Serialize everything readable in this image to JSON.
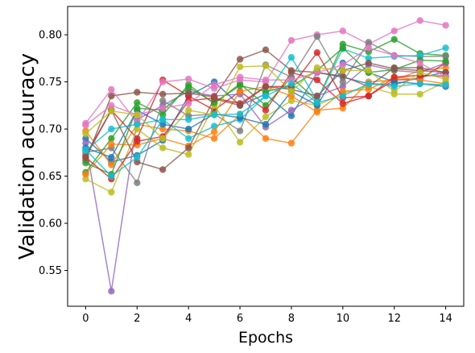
{
  "chart_data": {
    "type": "line",
    "xlabel": "Epochs",
    "ylabel": "Validation acuuracy",
    "xlim": [
      -0.7,
      14.7
    ],
    "ylim": [
      0.512,
      0.83
    ],
    "xticks": [
      0,
      2,
      4,
      6,
      8,
      10,
      12,
      14
    ],
    "yticks": [
      0.55,
      0.6,
      0.65,
      0.7,
      0.75,
      0.8
    ],
    "xtick_labels": [
      "0",
      "2",
      "4",
      "6",
      "8",
      "10",
      "12",
      "14"
    ],
    "ytick_labels": [
      "0.55",
      "0.60",
      "0.65",
      "0.70",
      "0.75",
      "0.80"
    ],
    "grid": false,
    "x": [
      0,
      1,
      2,
      3,
      4,
      5,
      6,
      7,
      8,
      9,
      10,
      11,
      12,
      13,
      14
    ],
    "series": [
      {
        "color": "#1f77b4",
        "values": [
          0.69,
          0.665,
          0.672,
          0.688,
          0.735,
          0.75,
          0.725,
          0.737,
          0.714,
          0.76,
          0.755,
          0.748,
          0.747,
          0.755,
          0.76
        ]
      },
      {
        "color": "#ff7f0e",
        "values": [
          0.698,
          0.662,
          0.705,
          0.7,
          0.698,
          0.69,
          0.715,
          0.69,
          0.685,
          0.72,
          0.722,
          0.75,
          0.752,
          0.762,
          0.765
        ]
      },
      {
        "color": "#2ca02c",
        "values": [
          0.654,
          0.69,
          0.728,
          0.715,
          0.747,
          0.727,
          0.748,
          0.725,
          0.755,
          0.73,
          0.79,
          0.782,
          0.795,
          0.78,
          0.778
        ]
      },
      {
        "color": "#d62728",
        "values": [
          0.672,
          0.72,
          0.69,
          0.752,
          0.735,
          0.72,
          0.74,
          0.72,
          0.76,
          0.752,
          0.727,
          0.735,
          0.752,
          0.753,
          0.77
        ]
      },
      {
        "color": "#9467bd",
        "values": [
          0.685,
          0.528,
          0.71,
          0.725,
          0.74,
          0.735,
          0.737,
          0.702,
          0.72,
          0.735,
          0.745,
          0.768,
          0.762,
          0.76,
          0.77
        ]
      },
      {
        "color": "#8c564b",
        "values": [
          0.667,
          0.735,
          0.739,
          0.737,
          0.738,
          0.734,
          0.774,
          0.784,
          0.762,
          0.76,
          0.756,
          0.745,
          0.765,
          0.765,
          0.76
        ]
      },
      {
        "color": "#e377c2",
        "values": [
          0.706,
          0.742,
          0.707,
          0.75,
          0.753,
          0.743,
          0.752,
          0.75,
          0.794,
          0.8,
          0.804,
          0.79,
          0.804,
          0.815,
          0.81
        ]
      },
      {
        "color": "#7f7f7f",
        "values": [
          0.675,
          0.68,
          0.643,
          0.73,
          0.714,
          0.716,
          0.698,
          0.768,
          0.755,
          0.798,
          0.75,
          0.792,
          0.778,
          0.777,
          0.777
        ]
      },
      {
        "color": "#bcbd22",
        "values": [
          0.647,
          0.633,
          0.7,
          0.68,
          0.673,
          0.725,
          0.686,
          0.713,
          0.73,
          0.725,
          0.738,
          0.745,
          0.737,
          0.737,
          0.75
        ]
      },
      {
        "color": "#17becf",
        "values": [
          0.677,
          0.7,
          0.705,
          0.71,
          0.69,
          0.703,
          0.71,
          0.735,
          0.776,
          0.73,
          0.785,
          0.775,
          0.777,
          0.778,
          0.786
        ]
      },
      {
        "color": "#1f77b4",
        "values": [
          0.68,
          0.67,
          0.72,
          0.705,
          0.7,
          0.716,
          0.712,
          0.705,
          0.74,
          0.725,
          0.77,
          0.76,
          0.75,
          0.748,
          0.745
        ]
      },
      {
        "color": "#ff7f0e",
        "values": [
          0.652,
          0.684,
          0.683,
          0.69,
          0.682,
          0.697,
          0.74,
          0.745,
          0.735,
          0.718,
          0.74,
          0.742,
          0.755,
          0.752,
          0.748
        ]
      },
      {
        "color": "#2ca02c",
        "values": [
          0.664,
          0.652,
          0.722,
          0.72,
          0.744,
          0.728,
          0.746,
          0.74,
          0.745,
          0.762,
          0.786,
          0.76,
          0.763,
          0.773,
          0.772
        ]
      },
      {
        "color": "#d62728",
        "values": [
          0.67,
          0.647,
          0.687,
          0.692,
          0.73,
          0.733,
          0.727,
          0.745,
          0.745,
          0.781,
          0.733,
          0.735,
          0.755,
          0.757,
          0.756
        ]
      },
      {
        "color": "#8c564b",
        "values": [
          0.67,
          0.72,
          0.665,
          0.657,
          0.68,
          0.732,
          0.725,
          0.745,
          0.742,
          0.735,
          0.762,
          0.77,
          0.764,
          0.762,
          0.76
        ]
      },
      {
        "color": "#e377c2",
        "values": [
          0.704,
          0.725,
          0.715,
          0.722,
          0.727,
          0.747,
          0.755,
          0.752,
          0.752,
          0.76,
          0.768,
          0.786,
          0.778,
          0.77,
          0.755
        ]
      },
      {
        "color": "#bcbd22",
        "values": [
          0.695,
          0.719,
          0.715,
          0.69,
          0.72,
          0.715,
          0.766,
          0.767,
          0.74,
          0.765,
          0.762,
          0.762,
          0.74,
          0.76,
          0.753
        ]
      },
      {
        "color": "#17becf",
        "values": [
          0.678,
          0.65,
          0.67,
          0.71,
          0.71,
          0.715,
          0.716,
          0.735,
          0.748,
          0.728,
          0.735,
          0.748,
          0.745,
          0.748,
          0.747
        ]
      }
    ]
  }
}
